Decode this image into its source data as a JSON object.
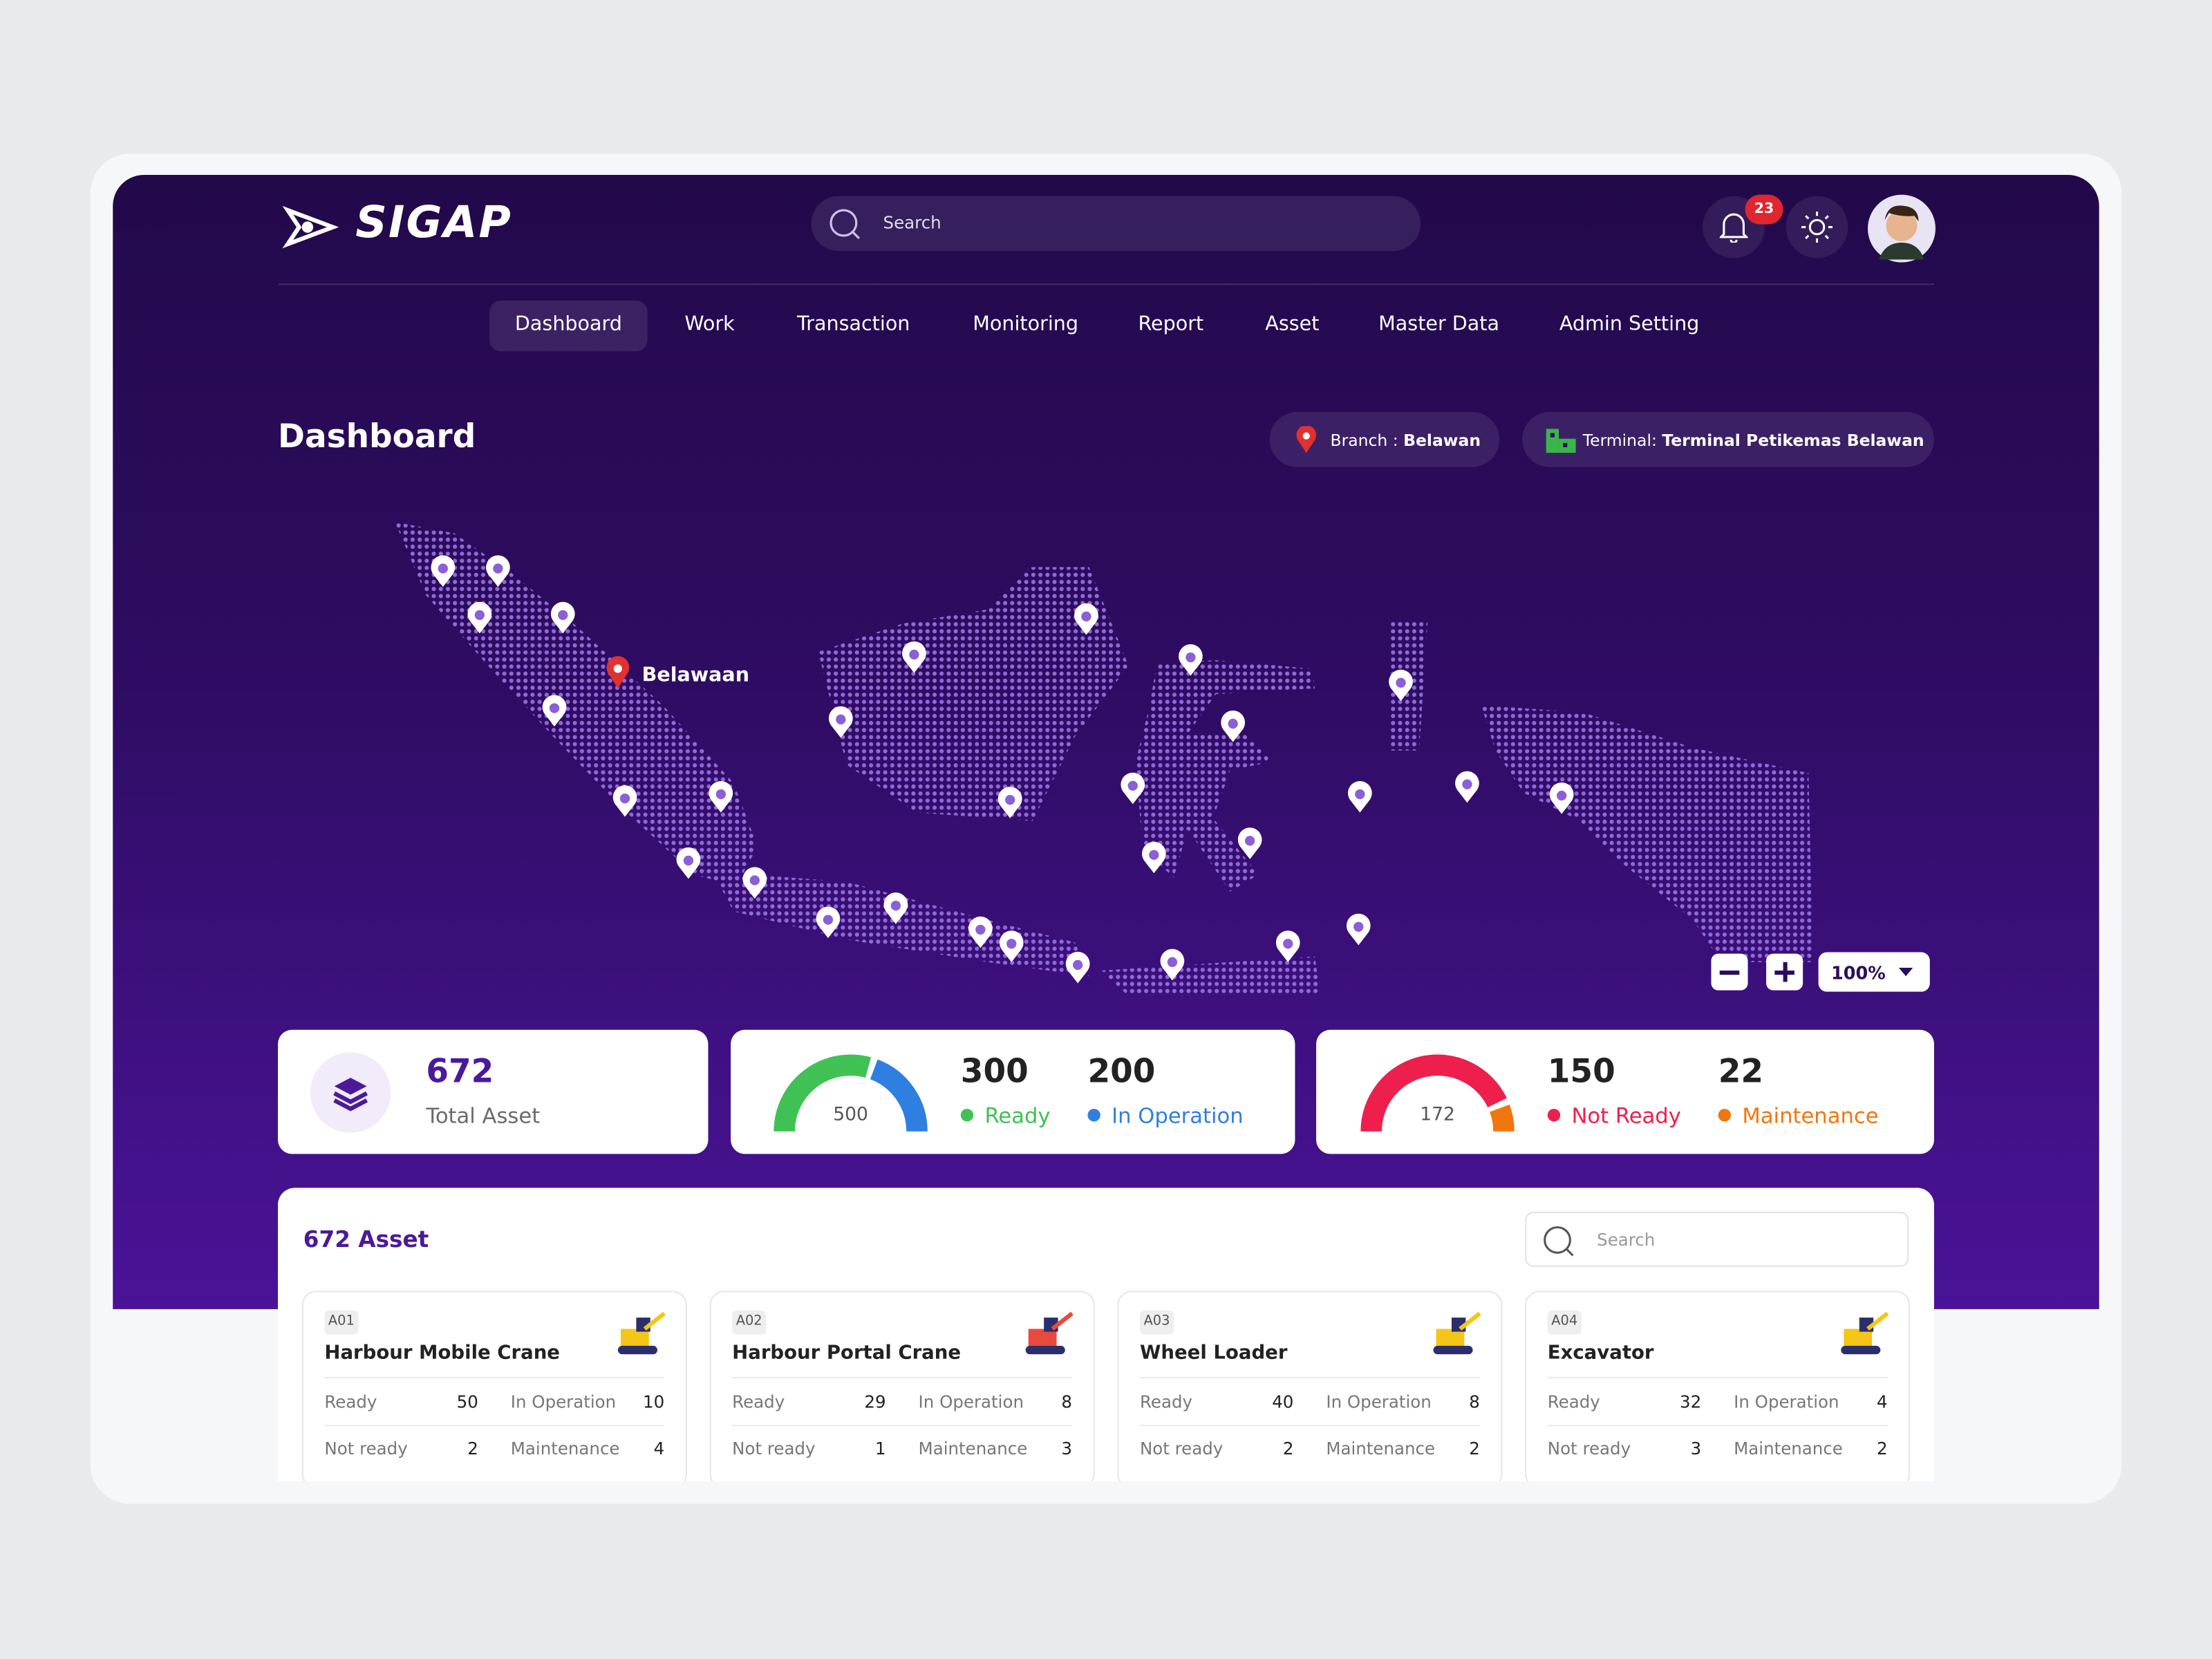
{
  "header": {
    "logo": "SIGAP",
    "search_placeholder": "Search",
    "notification_count": 23
  },
  "nav": [
    "Dashboard",
    "Work",
    "Transaction",
    "Monitoring",
    "Report",
    "Asset",
    "Master Data",
    "Admin Setting"
  ],
  "page_title": "Dashboard",
  "filters": {
    "branch_label": "Branch :",
    "branch": "Belawan",
    "terminal_label": "Terminal:",
    "terminal": "Terminal Petikemas Belawan"
  },
  "map": {
    "marker_label": "Belawaan",
    "zoom": "100%"
  },
  "summary": {
    "total": 672,
    "total_label": "Total Asset",
    "active": {
      "total": 500,
      "ready": 300,
      "ready_label": "Ready",
      "in_operation": 200,
      "in_operation_label": "In Operation"
    },
    "inactive": {
      "total": 172,
      "not_ready": 150,
      "not_ready_label": "Not Ready",
      "maintenance": 22,
      "maintenance_label": "Maintenance"
    }
  },
  "assets": {
    "title": "672 Asset",
    "search_placeholder": "Search",
    "stat_labels": {
      "ready": "Ready",
      "in_operation": "In Operation",
      "not_ready": "Not ready",
      "maintenance": "Maintenance"
    },
    "items": [
      {
        "code": "A01",
        "name": "Harbour Mobile Crane",
        "ready": 50,
        "in_operation": 10,
        "not_ready": 2,
        "maintenance": 4
      },
      {
        "code": "A02",
        "name": "Harbour Portal Crane",
        "ready": 29,
        "in_operation": 8,
        "not_ready": 1,
        "maintenance": 3
      },
      {
        "code": "A03",
        "name": "Wheel Loader",
        "ready": 40,
        "in_operation": 8,
        "not_ready": 2,
        "maintenance": 2
      },
      {
        "code": "A04",
        "name": "Excavator",
        "ready": 32,
        "in_operation": 4,
        "not_ready": 3,
        "maintenance": 2
      }
    ]
  }
}
